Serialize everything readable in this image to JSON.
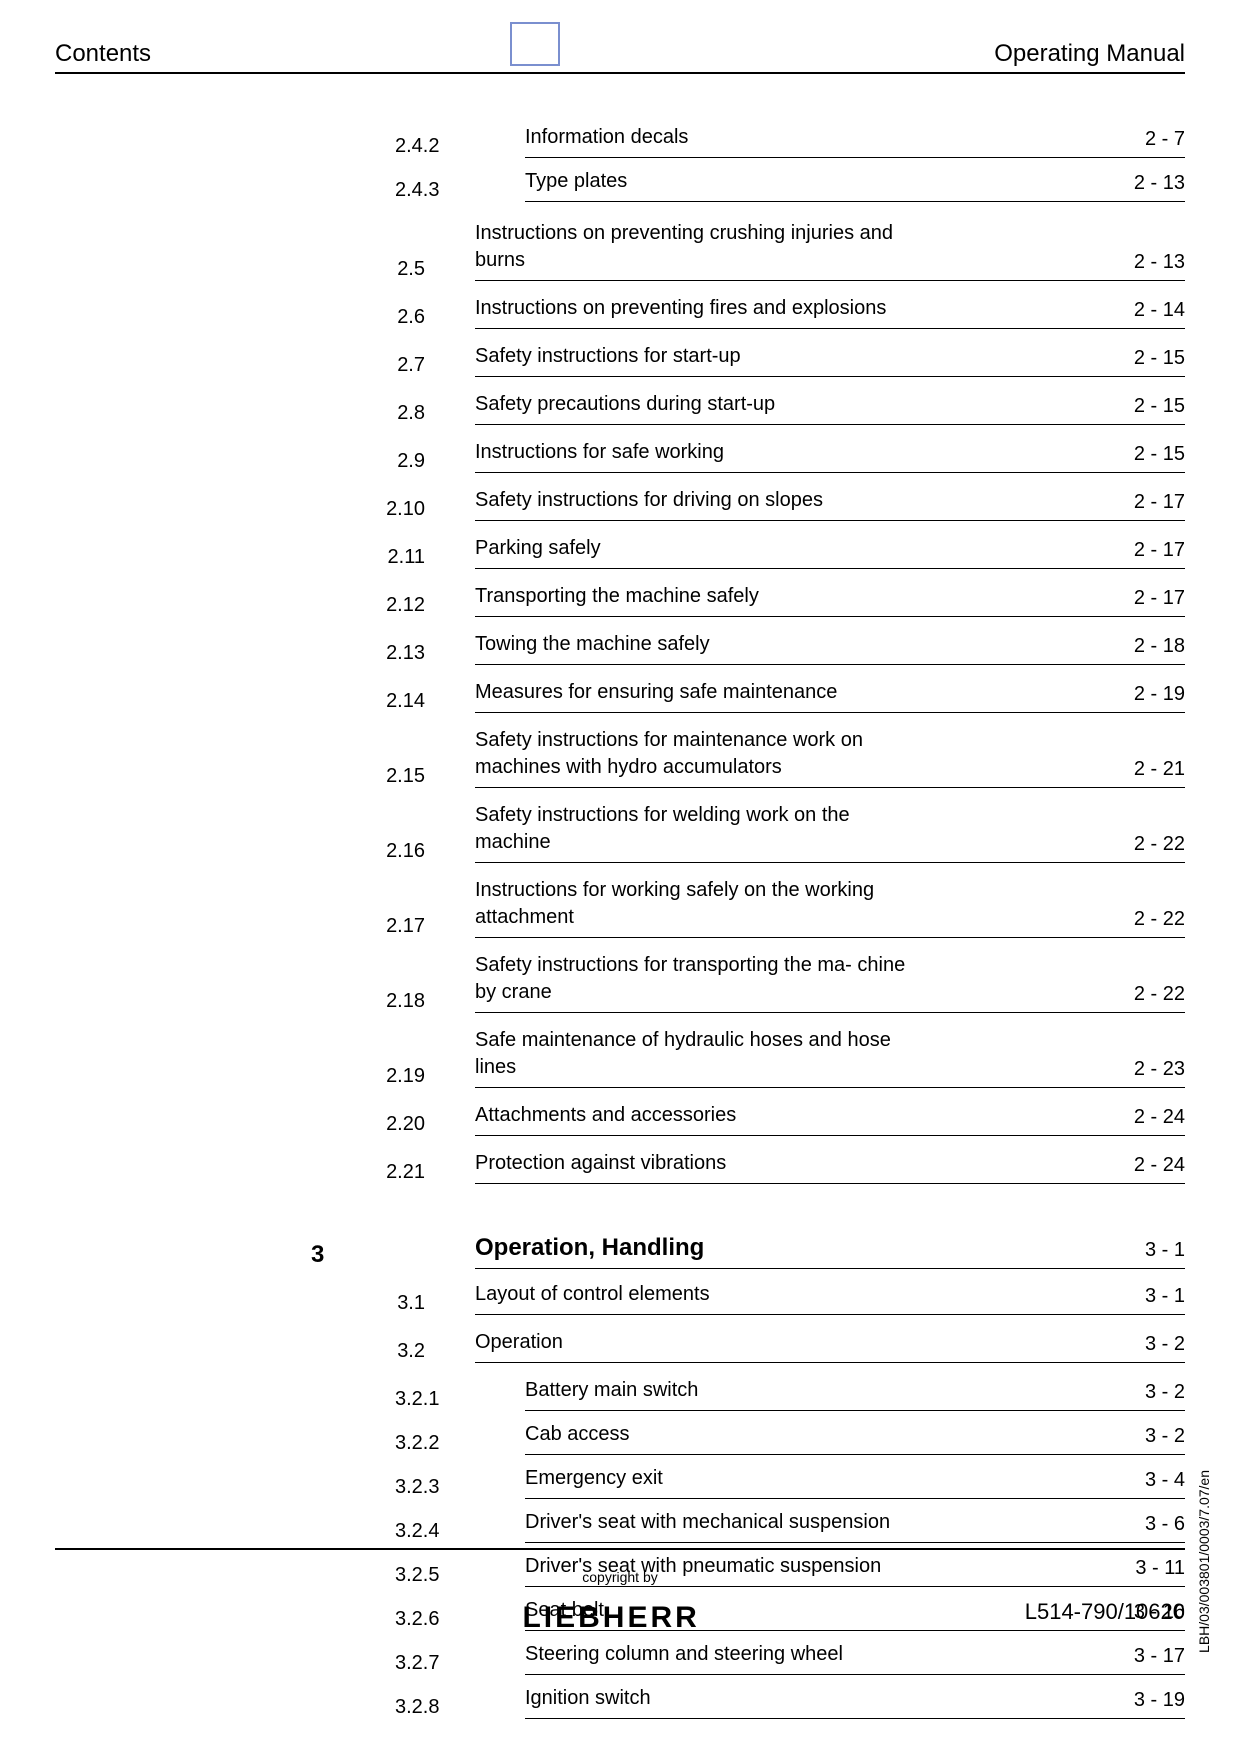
{
  "header": {
    "left": "Contents",
    "right": "Operating Manual"
  },
  "sub_entries_top": [
    {
      "num": "2.4.2",
      "title": "Information decals",
      "page": "2 - 7"
    },
    {
      "num": "2.4.3",
      "title": "Type plates",
      "page": "2 - 13"
    }
  ],
  "section_entries": [
    {
      "num": "2.5",
      "title": "Instructions on preventing crushing injuries and burns",
      "page": "2 - 13"
    },
    {
      "num": "2.6",
      "title": "Instructions on preventing fires and explosions",
      "page": "2 - 14"
    },
    {
      "num": "2.7",
      "title": "Safety instructions for start-up",
      "page": "2 - 15"
    },
    {
      "num": "2.8",
      "title": "Safety precautions during start-up",
      "page": "2 - 15"
    },
    {
      "num": "2.9",
      "title": "Instructions for safe working",
      "page": "2 - 15"
    },
    {
      "num": "2.10",
      "title": "Safety instructions for driving on slopes",
      "page": "2 - 17"
    },
    {
      "num": "2.11",
      "title": "Parking safely",
      "page": "2 - 17"
    },
    {
      "num": "2.12",
      "title": "Transporting the machine safely",
      "page": "2 - 17"
    },
    {
      "num": "2.13",
      "title": "Towing the machine safely",
      "page": "2 - 18"
    },
    {
      "num": "2.14",
      "title": "Measures for ensuring safe maintenance",
      "page": "2 - 19"
    },
    {
      "num": "2.15",
      "title": "Safety instructions for maintenance work on machines with hydro accumulators",
      "page": "2 - 21"
    },
    {
      "num": "2.16",
      "title": "Safety instructions for welding work on the machine",
      "page": "2 - 22"
    },
    {
      "num": "2.17",
      "title": "Instructions for working safely on the working attachment",
      "page": "2 - 22"
    },
    {
      "num": "2.18",
      "title": "Safety instructions for transporting the ma- chine by crane",
      "page": "2 - 22"
    },
    {
      "num": "2.19",
      "title": "Safe maintenance of hydraulic hoses and hose lines",
      "page": "2 - 23"
    },
    {
      "num": "2.20",
      "title": "Attachments and accessories",
      "page": "2 - 24"
    },
    {
      "num": "2.21",
      "title": "Protection against vibrations",
      "page": "2 - 24"
    }
  ],
  "chapter": {
    "num": "3",
    "title": "Operation, Handling",
    "page": "3 - 1"
  },
  "section_entries_2": [
    {
      "num": "3.1",
      "title": "Layout of control elements",
      "page": "3 - 1"
    },
    {
      "num": "3.2",
      "title": "Operation",
      "page": "3 - 2"
    }
  ],
  "sub_entries_bottom": [
    {
      "num": "3.2.1",
      "title": "Battery main switch",
      "page": "3 - 2"
    },
    {
      "num": "3.2.2",
      "title": "Cab access",
      "page": "3 - 2"
    },
    {
      "num": "3.2.3",
      "title": "Emergency exit",
      "page": "3 - 4"
    },
    {
      "num": "3.2.4",
      "title": "Driver's seat with mechanical suspension",
      "page": "3 - 6"
    },
    {
      "num": "3.2.5",
      "title": "Driver's seat with pneumatic suspension",
      "page": "3 - 11"
    },
    {
      "num": "3.2.6",
      "title": "Seat belt",
      "page": "3 - 16"
    },
    {
      "num": "3.2.7",
      "title": "Steering column and steering wheel",
      "page": "3 - 17"
    },
    {
      "num": "3.2.8",
      "title": "Ignition switch",
      "page": "3 - 19"
    }
  ],
  "footer": {
    "copyright": "copyright by",
    "logo": "LIEBHERR",
    "doc_id": "L514-790/10620",
    "side_text": "LBH/03/003801/0003/7.07/en"
  }
}
